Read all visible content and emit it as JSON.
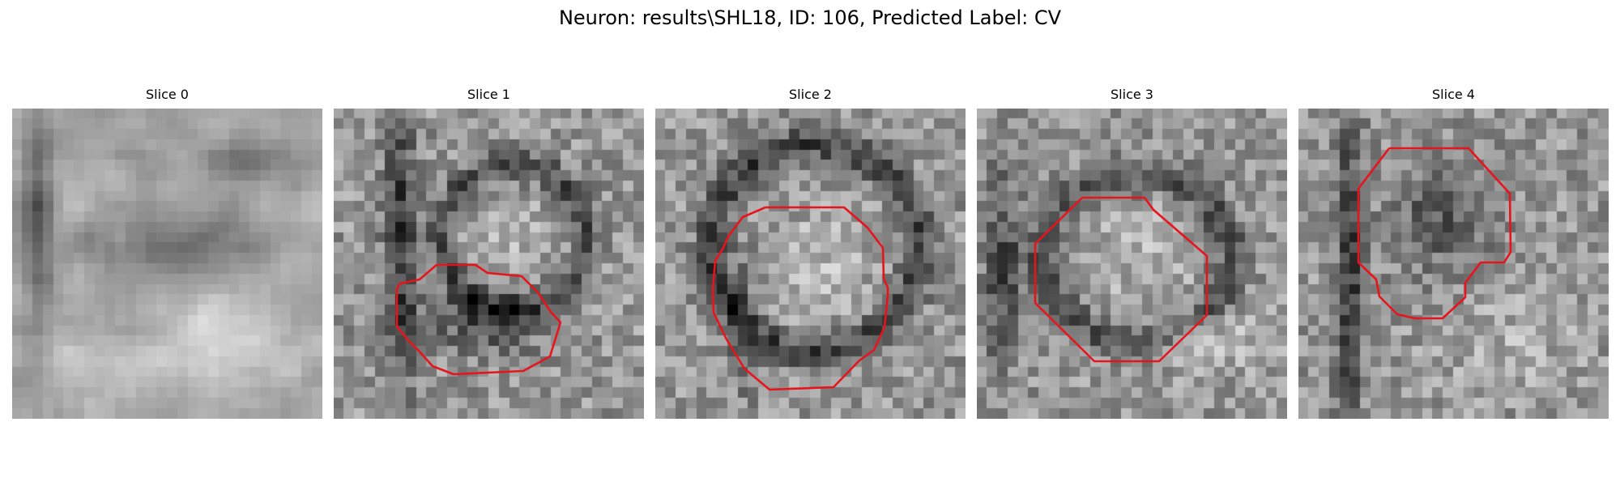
{
  "figure": {
    "title": "Neuron: results\\SHL18, ID: 106, Predicted Label: CV"
  },
  "colors": {
    "contour": "#e8141c",
    "colormap": "gray"
  },
  "panels": [
    {
      "title": "Slice 0",
      "has_contour": false
    },
    {
      "title": "Slice 1",
      "has_contour": true
    },
    {
      "title": "Slice 2",
      "has_contour": true
    },
    {
      "title": "Slice 3",
      "has_contour": true
    },
    {
      "title": "Slice 4",
      "has_contour": true
    }
  ]
}
